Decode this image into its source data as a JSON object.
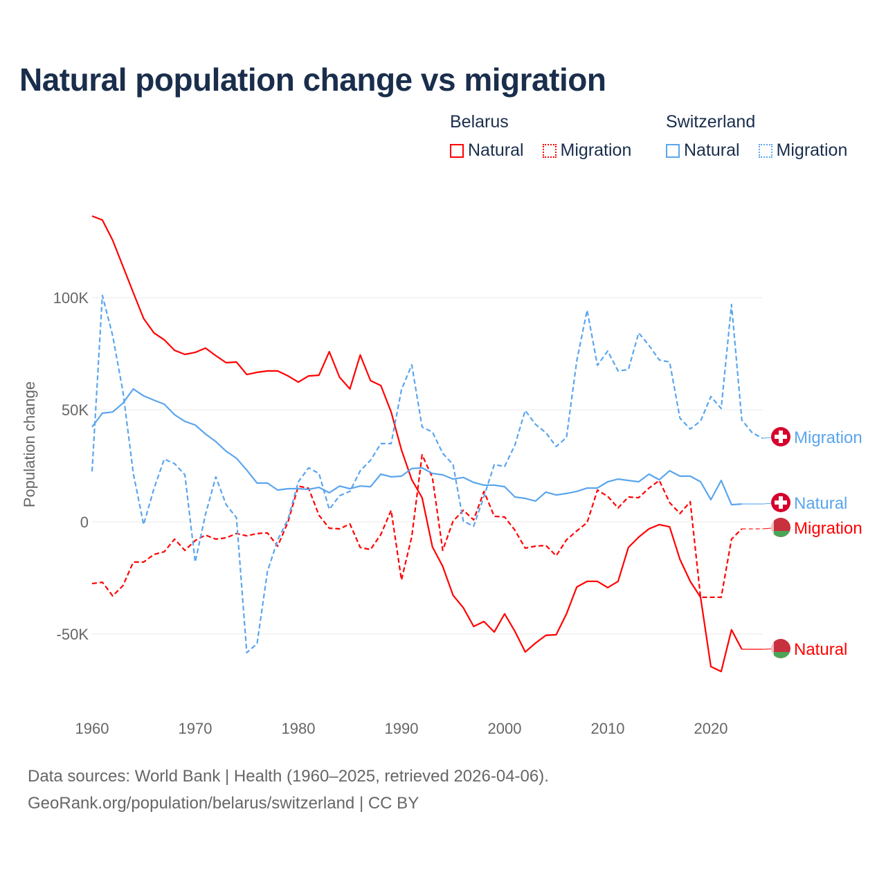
{
  "chart_data": {
    "type": "line",
    "title": "Natural population change vs migration",
    "xlabel": "",
    "ylabel": "Population change",
    "xlim": [
      1960,
      2025
    ],
    "ylim": [
      -75000,
      145000
    ],
    "x_ticks": [
      1960,
      1970,
      1980,
      1990,
      2000,
      2010,
      2020
    ],
    "y_ticks": [
      {
        "value": 100000,
        "label": "100K"
      },
      {
        "value": 50000,
        "label": "50K"
      },
      {
        "value": 0,
        "label": "0"
      },
      {
        "value": -50000,
        "label": "-50K"
      }
    ],
    "grid": true,
    "legend_position": "top-right",
    "start_year": 1960,
    "groups": [
      {
        "name": "Belarus"
      },
      {
        "name": "Switzerland"
      }
    ],
    "series": [
      {
        "country": "Belarus",
        "name": "Natural",
        "end_label": "Natural",
        "color": "#ff0000",
        "dashed": false,
        "flag": "belarus-flag",
        "values": [
          136.4,
          134.6,
          125.6,
          113.9,
          102.2,
          90.7,
          84.3,
          81.2,
          76.5,
          74.7,
          75.6,
          77.5,
          74.1,
          71,
          71.3,
          65.7,
          66.7,
          67.3,
          67.3,
          65.1,
          62.3,
          65.1,
          65.4,
          75.9,
          64.5,
          59.3,
          74.4,
          63,
          60.8,
          49,
          32.1,
          18.8,
          10.8,
          -11.1,
          -19.8,
          -32.7,
          -38.3,
          -46.6,
          -44.4,
          -49.1,
          -41,
          -48.8,
          -58,
          -54,
          -50.6,
          -50.3,
          -41,
          -29,
          -26.5,
          -26.5,
          -29.3,
          -26.5,
          -11.4,
          -6.8,
          -3.1,
          -1.2,
          -2.2,
          -16.7,
          -26.5,
          -33.6,
          -64.5,
          -66.7,
          -48.1,
          -56.8
        ]
      },
      {
        "country": "Belarus",
        "name": "Migration",
        "end_label": "Migration",
        "color": "#ff0000",
        "dashed": true,
        "flag": "belarus-flag",
        "values": [
          -27.5,
          -26.9,
          -33,
          -28.4,
          -17.9,
          -17.9,
          -14.5,
          -13.3,
          -7.7,
          -12.7,
          -8.3,
          -5.9,
          -7.7,
          -7.1,
          -5.2,
          -6.2,
          -5.2,
          -4.9,
          -10.8,
          0,
          16,
          15,
          3,
          -2.8,
          -3.1,
          -0.9,
          -11.4,
          -12.3,
          -5.6,
          5.2,
          -25.9,
          -6.5,
          29.9,
          19.8,
          -12.7,
          0.3,
          5.2,
          0.9,
          13.6,
          2.5,
          2.2,
          -3.7,
          -11.7,
          -10.8,
          -10.5,
          -15.1,
          -8,
          -4,
          -0.3,
          14.2,
          11.4,
          6.2,
          11.1,
          10.8,
          15.1,
          18.5,
          8.6,
          3.7,
          9,
          -33.6,
          -33.6,
          -33.6,
          -7.7,
          -3.1
        ]
      },
      {
        "country": "Switzerland",
        "name": "Natural",
        "end_label": "Natural",
        "color": "#5aa5ee",
        "dashed": false,
        "flag": "switzerland-flag",
        "values": [
          42.3,
          48.5,
          49,
          53,
          59.3,
          56.2,
          54.3,
          52.5,
          47.8,
          44.8,
          43.2,
          39.2,
          35.8,
          31.5,
          28.4,
          23.1,
          17.3,
          17.3,
          14.2,
          14.8,
          14.8,
          14.5,
          15.4,
          13,
          16,
          14.8,
          16,
          15.7,
          21.3,
          20.1,
          20.4,
          23.8,
          24.1,
          21.6,
          21,
          19.1,
          19.8,
          17.6,
          16.4,
          16.4,
          15.7,
          11.1,
          10.5,
          9.3,
          13.3,
          12,
          12.7,
          13.6,
          15.1,
          15.1,
          17.9,
          19.1,
          18.5,
          17.9,
          21.3,
          18.8,
          22.8,
          20.4,
          20.4,
          17.9,
          9.9,
          18.5,
          7.7,
          8
        ]
      },
      {
        "country": "Switzerland",
        "name": "Migration",
        "end_label": "Migration",
        "color": "#5aa5ee",
        "dashed": true,
        "flag": "switzerland-flag",
        "values": [
          22.5,
          101,
          83,
          58,
          21.6,
          -1.2,
          14.8,
          28,
          26,
          21,
          -17.9,
          3.4,
          20.1,
          7.7,
          1.9,
          -58.3,
          -54.3,
          -22.2,
          -8,
          1.2,
          17.9,
          24.1,
          21.6,
          5.6,
          11.7,
          13.6,
          22.8,
          27.5,
          34.9,
          34.9,
          59,
          70,
          42.3,
          40.1,
          30.6,
          25.6,
          0.3,
          -1.9,
          11.4,
          25.6,
          24.7,
          34.3,
          49.7,
          43.5,
          39.8,
          33.6,
          37.7,
          71.9,
          94.4,
          69.8,
          76.2,
          67.3,
          67.9,
          84.3,
          78.7,
          72.2,
          71.3,
          46.3,
          41.4,
          45,
          55.9,
          50.6,
          96.9,
          45.4,
          39.8,
          37.3
        ]
      }
    ],
    "value_unit": "thousands"
  },
  "footer": {
    "line1": "Data sources: World Bank | Health (1960–2025, retrieved 2026-04-06).",
    "line2": "GeoRank.org/population/belarus/switzerland | CC BY"
  }
}
